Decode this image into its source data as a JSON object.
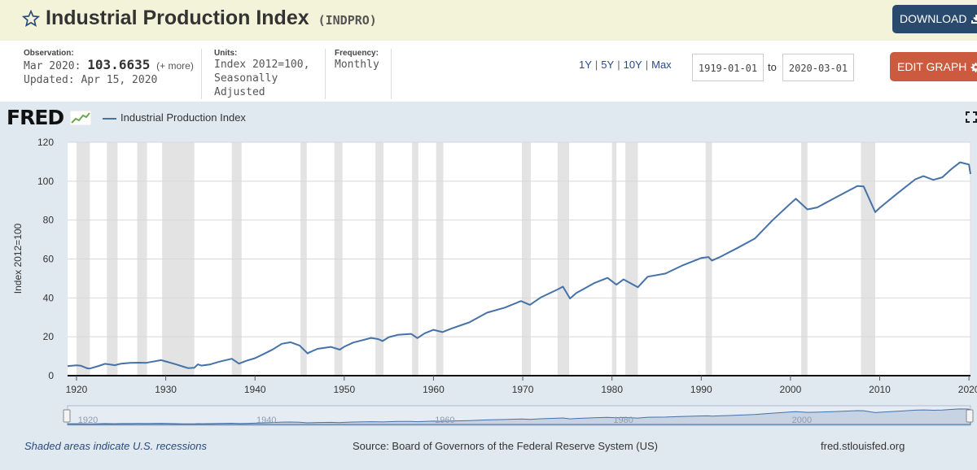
{
  "header": {
    "title": "Industrial Production Index",
    "series_id": "(INDPRO)",
    "download_label": "DOWNLOAD"
  },
  "observation": {
    "label": "Observation:",
    "date": "Mar 2020:",
    "value": "103.6635",
    "more": "(+ more)",
    "updated": "Updated: Apr 15, 2020"
  },
  "units": {
    "label": "Units:",
    "line1": "Index 2012=100,",
    "line2": "Seasonally Adjusted"
  },
  "frequency": {
    "label": "Frequency:",
    "value": "Monthly"
  },
  "range_links": [
    "1Y",
    "5Y",
    "10Y",
    "Max"
  ],
  "date_range": {
    "start": "1919-01-01",
    "to_label": "to",
    "end": "2020-03-01"
  },
  "edit_graph_label": "EDIT GRAPH",
  "graph": {
    "logo": "FRED",
    "legend_label": "Industrial Production Index"
  },
  "footer": {
    "recession_note": "Shaded areas indicate U.S. recessions",
    "source": "Source: Board of Governors of the Federal Reserve System (US)",
    "site": "fred.stlouisfed.org"
  },
  "colors": {
    "series": "#4572a7",
    "recession": "#e3e3e3",
    "header_bg": "#f3f3da",
    "download_bg": "#2a4a6d",
    "edit_bg": "#cb5a3e",
    "graph_bg": "#e1e9f0"
  },
  "chart_data": {
    "type": "line",
    "ylabel": "Index 2012=100",
    "ylim": [
      0,
      120
    ],
    "y_ticks": [
      0,
      20,
      40,
      60,
      80,
      100,
      120
    ],
    "xlim": [
      1919.0,
      2020.17
    ],
    "x_ticks": [
      "1920",
      "1930",
      "1940",
      "1950",
      "1960",
      "1970",
      "1980",
      "1990",
      "2000",
      "2010",
      "2020"
    ],
    "navigator_ticks": [
      "1920",
      "1940",
      "1960",
      "1980",
      "2000"
    ],
    "grid": true,
    "legend_placement": "top-left",
    "recessions": [
      [
        1920.0,
        1921.5
      ],
      [
        1923.4,
        1924.6
      ],
      [
        1926.8,
        1927.9
      ],
      [
        1929.6,
        1933.2
      ],
      [
        1937.4,
        1938.5
      ],
      [
        1945.1,
        1945.8
      ],
      [
        1948.9,
        1949.8
      ],
      [
        1953.5,
        1954.4
      ],
      [
        1957.6,
        1958.3
      ],
      [
        1960.3,
        1961.1
      ],
      [
        1969.9,
        1970.9
      ],
      [
        1973.9,
        1975.2
      ],
      [
        1980.0,
        1980.5
      ],
      [
        1981.5,
        1982.9
      ],
      [
        1990.5,
        1991.2
      ],
      [
        2001.2,
        2001.9
      ],
      [
        2007.9,
        2009.5
      ],
      [
        2020.1,
        2020.2
      ]
    ],
    "series": [
      {
        "name": "Industrial Production Index",
        "points": [
          [
            1919.0,
            4.9
          ],
          [
            1920.0,
            5.3
          ],
          [
            1920.5,
            5.1
          ],
          [
            1921.2,
            3.8
          ],
          [
            1921.5,
            3.7
          ],
          [
            1922.5,
            5.0
          ],
          [
            1923.2,
            6.1
          ],
          [
            1924.3,
            5.4
          ],
          [
            1925.0,
            6.2
          ],
          [
            1926.0,
            6.6
          ],
          [
            1927.0,
            6.7
          ],
          [
            1927.8,
            6.6
          ],
          [
            1928.5,
            7.2
          ],
          [
            1929.5,
            8.0
          ],
          [
            1930.0,
            7.3
          ],
          [
            1931.0,
            6.0
          ],
          [
            1932.0,
            4.6
          ],
          [
            1932.5,
            3.9
          ],
          [
            1933.2,
            4.1
          ],
          [
            1933.6,
            5.8
          ],
          [
            1934.0,
            5.2
          ],
          [
            1935.0,
            5.8
          ],
          [
            1936.0,
            7.2
          ],
          [
            1937.4,
            8.7
          ],
          [
            1938.2,
            6.2
          ],
          [
            1939.0,
            7.6
          ],
          [
            1940.0,
            9.0
          ],
          [
            1941.0,
            11.2
          ],
          [
            1942.0,
            13.5
          ],
          [
            1943.0,
            16.4
          ],
          [
            1944.0,
            17.2
          ],
          [
            1945.0,
            15.5
          ],
          [
            1945.9,
            11.4
          ],
          [
            1946.0,
            11.8
          ],
          [
            1947.0,
            13.8
          ],
          [
            1948.5,
            14.8
          ],
          [
            1949.5,
            13.4
          ],
          [
            1950.0,
            14.9
          ],
          [
            1951.0,
            17.0
          ],
          [
            1953.0,
            19.4
          ],
          [
            1953.8,
            18.8
          ],
          [
            1954.3,
            17.8
          ],
          [
            1955.0,
            19.8
          ],
          [
            1956.0,
            21.0
          ],
          [
            1957.5,
            21.5
          ],
          [
            1958.2,
            19.3
          ],
          [
            1959.0,
            21.8
          ],
          [
            1960.0,
            23.6
          ],
          [
            1961.0,
            22.4
          ],
          [
            1962.0,
            24.2
          ],
          [
            1964.0,
            27.4
          ],
          [
            1966.0,
            32.4
          ],
          [
            1968.0,
            35.0
          ],
          [
            1969.8,
            38.4
          ],
          [
            1970.8,
            36.4
          ],
          [
            1972.0,
            40.2
          ],
          [
            1973.9,
            44.3
          ],
          [
            1974.5,
            45.8
          ],
          [
            1975.3,
            39.7
          ],
          [
            1976.0,
            42.5
          ],
          [
            1978.0,
            47.6
          ],
          [
            1979.5,
            50.3
          ],
          [
            1980.5,
            46.8
          ],
          [
            1981.3,
            49.5
          ],
          [
            1982.9,
            45.5
          ],
          [
            1984.0,
            50.9
          ],
          [
            1986.0,
            52.5
          ],
          [
            1988.0,
            56.9
          ],
          [
            1990.0,
            60.5
          ],
          [
            1990.8,
            61.0
          ],
          [
            1991.2,
            59.2
          ],
          [
            1992.0,
            60.8
          ],
          [
            1994.0,
            65.5
          ],
          [
            1996.0,
            70.5
          ],
          [
            1998.0,
            80.0
          ],
          [
            2000.0,
            88.5
          ],
          [
            2000.6,
            91.0
          ],
          [
            2001.9,
            85.5
          ],
          [
            2003.0,
            86.5
          ],
          [
            2005.0,
            91.5
          ],
          [
            2007.5,
            97.5
          ],
          [
            2008.2,
            97.3
          ],
          [
            2009.5,
            84.1
          ],
          [
            2010.0,
            86.3
          ],
          [
            2012.0,
            93.8
          ],
          [
            2014.0,
            101.0
          ],
          [
            2014.9,
            102.6
          ],
          [
            2016.0,
            100.7
          ],
          [
            2017.0,
            102.0
          ],
          [
            2018.0,
            106.1
          ],
          [
            2019.0,
            109.7
          ],
          [
            2019.7,
            108.9
          ],
          [
            2020.0,
            108.6
          ],
          [
            2020.17,
            103.7
          ]
        ]
      }
    ]
  }
}
